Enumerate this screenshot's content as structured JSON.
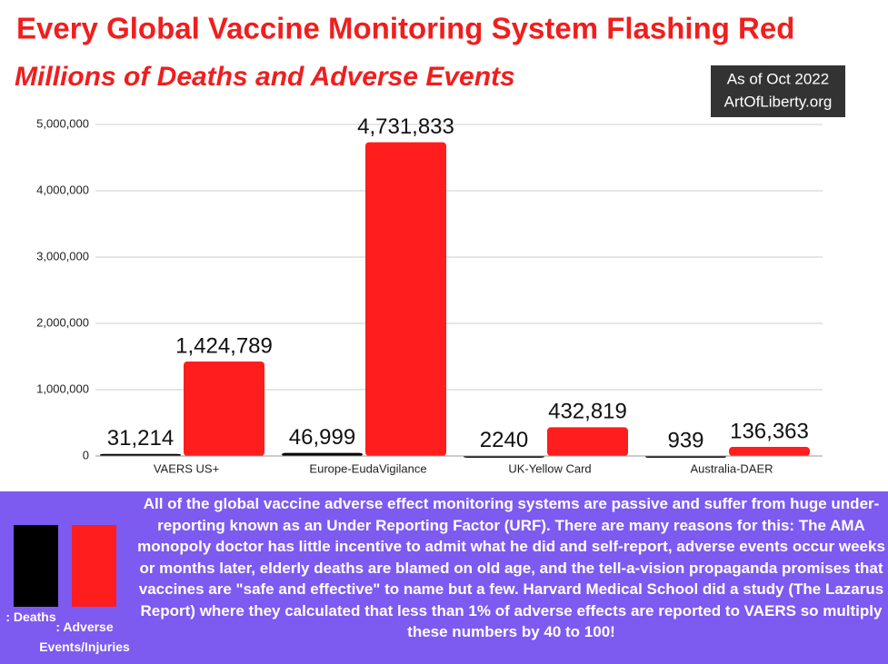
{
  "chart_data": {
    "type": "bar",
    "title": "Every Global Vaccine Monitoring System Flashing Red",
    "subtitle": "Millions of Deaths and Adverse Events",
    "annotations": [
      "As of Oct 2022",
      "ArtOfLiberty.org"
    ],
    "categories": [
      "VAERS US+",
      "Europe-EudaVigilance",
      "UK-Yellow Card",
      "Australia-DAER"
    ],
    "series": [
      {
        "name": ": Deaths",
        "color": "#000000",
        "values": [
          31214,
          46999,
          2240,
          939
        ],
        "value_labels": [
          "31,214",
          "46,999",
          "2240",
          "939"
        ]
      },
      {
        "name": ": Adverse Events/Injuries",
        "color": "#ff1d1d",
        "values": [
          1424789,
          4731833,
          432819,
          136363
        ],
        "value_labels": [
          "1,424,789",
          "4,731,833",
          "432,819",
          "136,363"
        ]
      }
    ],
    "ylim": [
      0,
      5000000
    ],
    "yticks": [
      0,
      {
        "value": 1000000,
        "label": "1,000,000"
      },
      {
        "value": 2000000,
        "label": "2,000,000"
      },
      {
        "value": 3000000,
        "label": "3,000,000"
      },
      {
        "value": 4000000,
        "label": "4,000,000"
      },
      {
        "value": 5000000,
        "label": "5,000,000"
      }
    ],
    "grid": true,
    "description": "All of the global vaccine adverse effect monitoring systems are passive and suffer from huge under-reporting known as an Under Reporting Factor (URF).  There are many reasons for this: The AMA monopoly doctor has little incentive to admit what he did and self-report, adverse events occur weeks or months later, elderly deaths are blamed on old age, and the tell-a-vision propaganda promises that vaccines are \"safe and effective\" to name but a few. Harvard Medical School did a study (The Lazarus Report) where they calculated that less than 1% of adverse effects are reported to VAERS so multiply these numbers by 40 to 100!"
  }
}
